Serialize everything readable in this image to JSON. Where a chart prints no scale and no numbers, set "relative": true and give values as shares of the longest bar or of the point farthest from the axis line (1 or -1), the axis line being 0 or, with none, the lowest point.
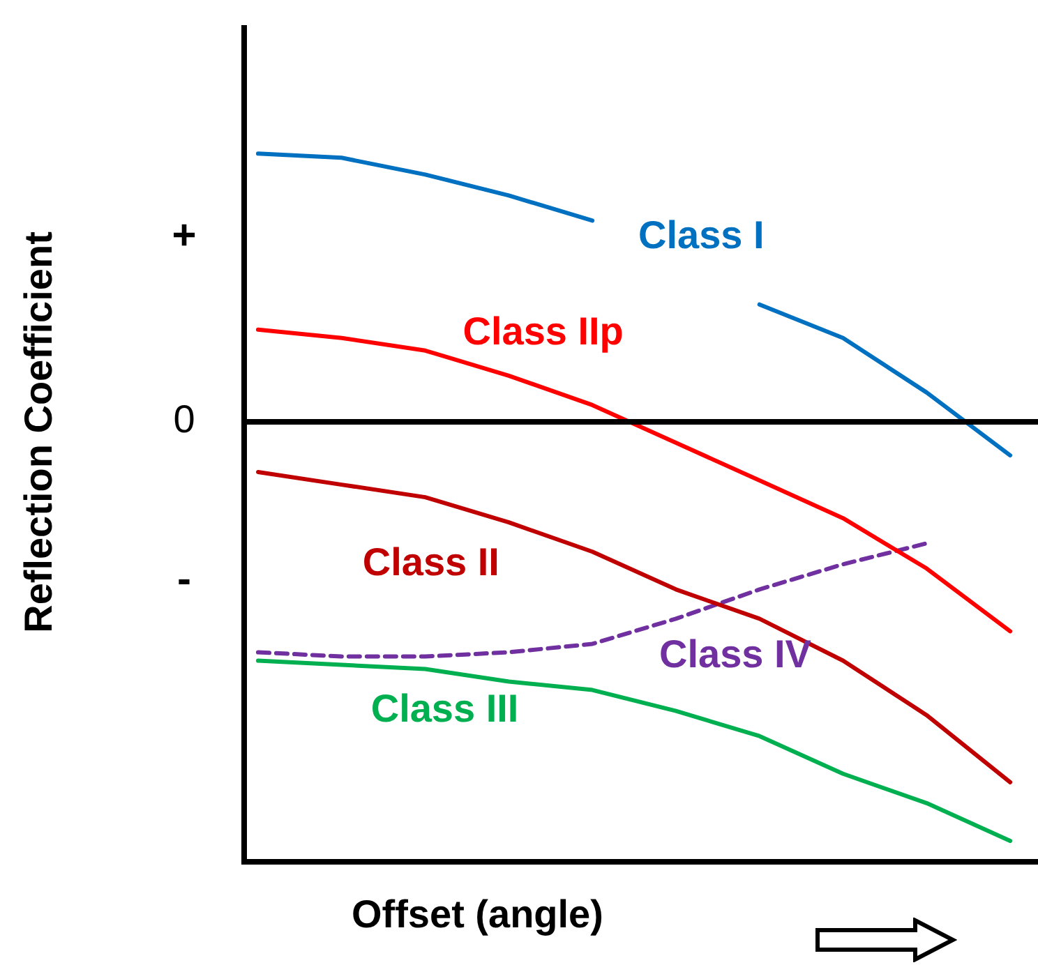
{
  "chart_data": {
    "type": "line",
    "relative": true,
    "xlabel": "Offset (angle)",
    "ylabel": "Reflection Coefficient",
    "categories": [
      null,
      null,
      null,
      null,
      null,
      null,
      null,
      null,
      null,
      null
    ],
    "series": [
      {
        "name": "Class I",
        "color": "#0070c0",
        "values": [
          0.64,
          0.63,
          0.59,
          0.54,
          0.48,
          null,
          0.28,
          0.2,
          0.07,
          -0.08
        ]
      },
      {
        "name": "Class IIp",
        "color": "#ff0000",
        "values": [
          0.22,
          0.2,
          0.17,
          0.11,
          0.04,
          -0.05,
          -0.14,
          -0.23,
          -0.35,
          -0.5
        ]
      },
      {
        "name": "Class II",
        "color": "#c00000",
        "values": [
          -0.12,
          -0.15,
          -0.18,
          -0.24,
          -0.31,
          -0.4,
          -0.47,
          -0.57,
          -0.7,
          -0.86
        ]
      },
      {
        "name": "Class IV",
        "color": "#7030a0",
        "line_style": "dashed",
        "values": [
          -0.55,
          -0.56,
          -0.56,
          -0.55,
          -0.53,
          -0.47,
          -0.4,
          -0.34,
          -0.29,
          null
        ]
      },
      {
        "name": "Class III",
        "color": "#00b050",
        "values": [
          -0.57,
          -0.58,
          -0.59,
          -0.62,
          -0.64,
          -0.69,
          -0.75,
          -0.84,
          -0.91,
          -1.0
        ]
      }
    ],
    "ref_lines": [
      {
        "axis": "y",
        "value": 0,
        "label": "0",
        "color": "#000000"
      }
    ],
    "annotations": [
      "+",
      "-"
    ],
    "marker": "none",
    "legend": false
  }
}
